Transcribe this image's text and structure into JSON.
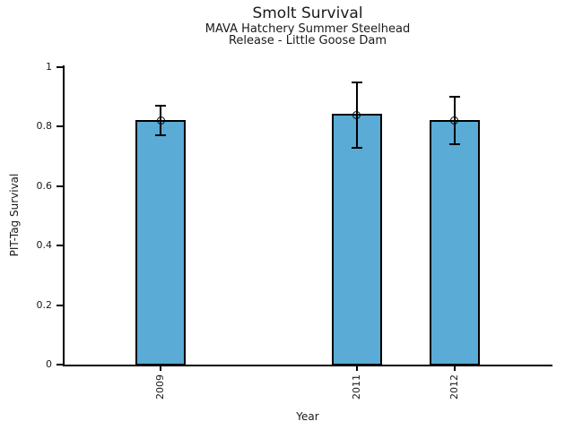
{
  "chart_data": {
    "type": "bar",
    "title": "Smolt Survival",
    "subtitle": [
      "MAVA Hatchery Summer Steelhead",
      "Release - Little Goose Dam"
    ],
    "xlabel": "Year",
    "ylabel": "PIT-Tag Survival",
    "categories": [
      "2009",
      "2011",
      "2012"
    ],
    "x_numeric": [
      2009,
      2011,
      2012
    ],
    "series": [
      {
        "name": "PIT-Tag Survival",
        "values": [
          0.82,
          0.84,
          0.82
        ],
        "error_low": [
          0.77,
          0.73,
          0.74
        ],
        "error_high": [
          0.87,
          0.95,
          0.9
        ]
      }
    ],
    "ylim": [
      0,
      1
    ],
    "xlim": [
      2008,
      2013
    ],
    "yticks": [
      0,
      0.2,
      0.4,
      0.6,
      0.8,
      1
    ],
    "ytick_labels": [
      "0",
      "0.2",
      "0.4",
      "0.6",
      "0.8",
      "1"
    ],
    "grid": false,
    "legend": false,
    "marker": "open-circle",
    "colors": {
      "bar_fill": "#5AABD5",
      "bar_edge": "#000000",
      "text": "#1a1a1a",
      "axis": "#000000"
    }
  }
}
